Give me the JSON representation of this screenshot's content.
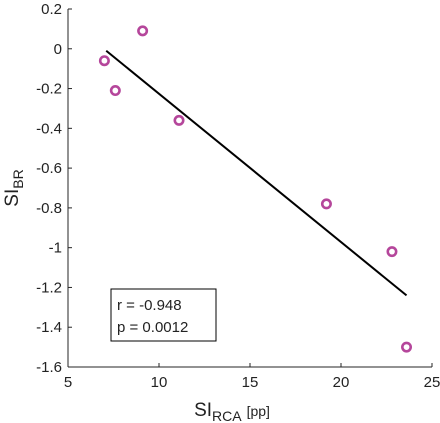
{
  "chart_data": {
    "type": "scatter",
    "title": "",
    "xlabel": {
      "main": "SI",
      "sub": "RCA",
      "suffix": "[pp]"
    },
    "ylabel": {
      "main": "SI",
      "sub": "BR"
    },
    "xlim": [
      5,
      25
    ],
    "ylim": [
      -1.6,
      0.2
    ],
    "x_ticks": [
      5,
      10,
      15,
      20,
      25
    ],
    "x_tick_labels": [
      "5",
      "10",
      "15",
      "20",
      "25"
    ],
    "y_ticks": [
      0.2,
      0,
      -0.2,
      -0.4,
      -0.6,
      -0.8,
      -1,
      -1.2,
      -1.4,
      -1.6
    ],
    "y_tick_labels": [
      "0.2",
      "0",
      "-0.2",
      "-0.4",
      "-0.6",
      "-0.8",
      "-1",
      "-1.2",
      "-1.4",
      "-1.6"
    ],
    "grid": false,
    "points": [
      {
        "x": 7.0,
        "y": -0.06
      },
      {
        "x": 7.6,
        "y": -0.21
      },
      {
        "x": 9.1,
        "y": 0.09
      },
      {
        "x": 11.1,
        "y": -0.36
      },
      {
        "x": 19.2,
        "y": -0.78
      },
      {
        "x": 22.8,
        "y": -1.02
      },
      {
        "x": 23.6,
        "y": -1.5
      }
    ],
    "fit_line": {
      "x": [
        7.1,
        23.6
      ],
      "y": [
        -0.01,
        -1.24
      ]
    },
    "marker_color": "#b5469b",
    "line_color": "#000000",
    "annotation": {
      "r_text": "r = -0.948",
      "p_text": "p = 0.0012",
      "placement": "bottom-left"
    }
  }
}
